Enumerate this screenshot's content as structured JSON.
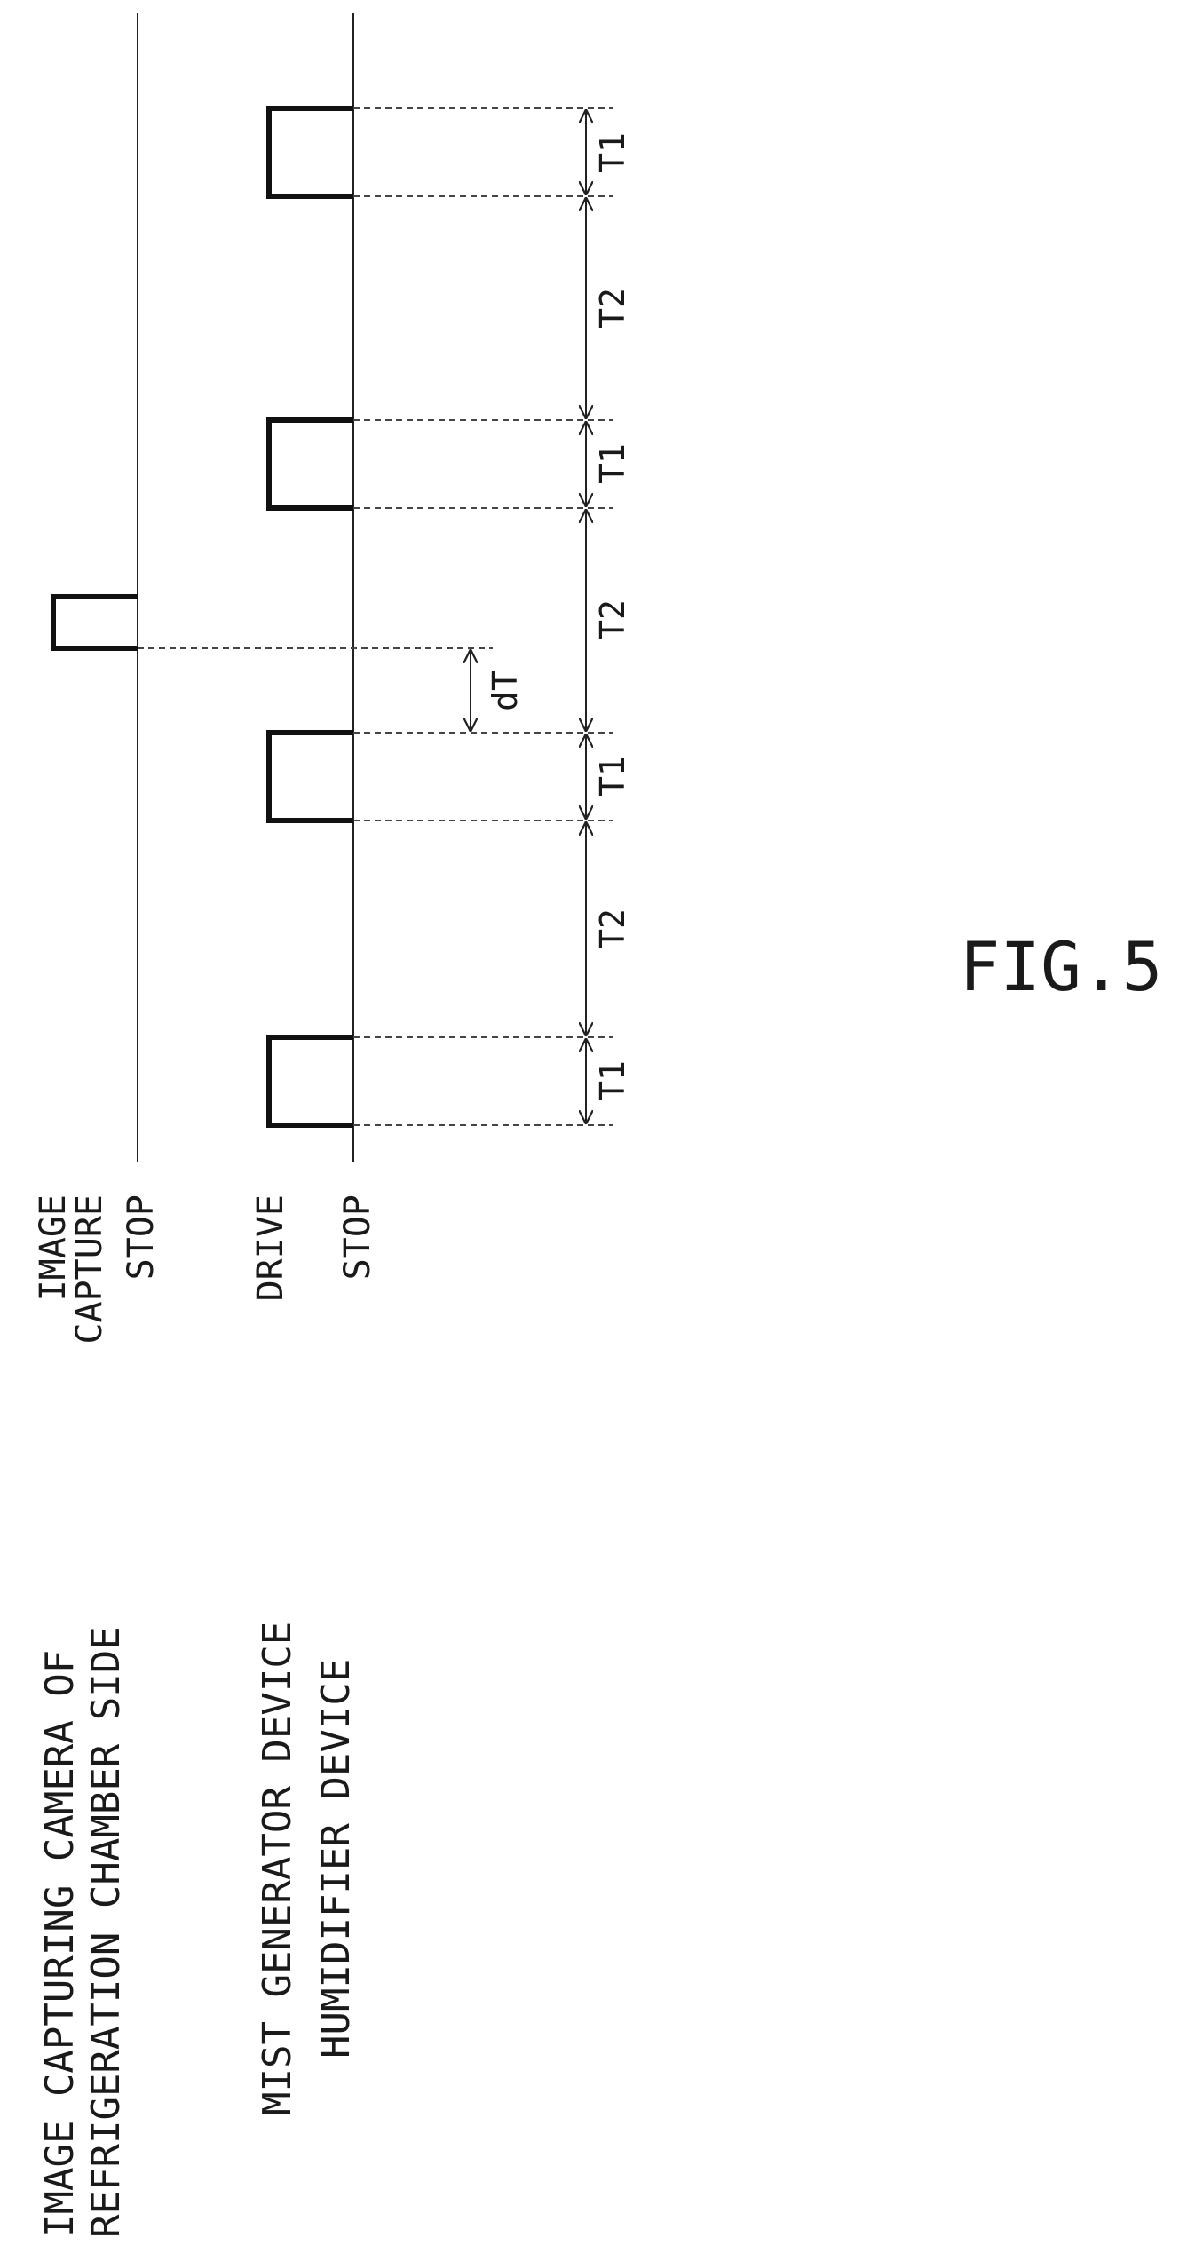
{
  "labels": {
    "camera_line1": "IMAGE CAPTURING CAMERA OF",
    "camera_line2": "REFRIGERATION CHAMBER SIDE",
    "capture_line1": "IMAGE",
    "capture_line2": "CAPTURE",
    "camera_stop": "STOP",
    "mist_device": "MIST GENERATOR DEVICE",
    "humidifier_device": "HUMIDIFIER DEVICE",
    "drive": "DRIVE",
    "device_stop": "STOP",
    "t1": "T1",
    "t2": "T2",
    "dt": "dT",
    "figure": "FIG.5"
  },
  "timing": {
    "drive_pulse_count": 4,
    "capture_pulse_count": 1,
    "interval_sequence": [
      "T1",
      "T2",
      "T1",
      "T2",
      "T1",
      "T2",
      "T1"
    ]
  }
}
